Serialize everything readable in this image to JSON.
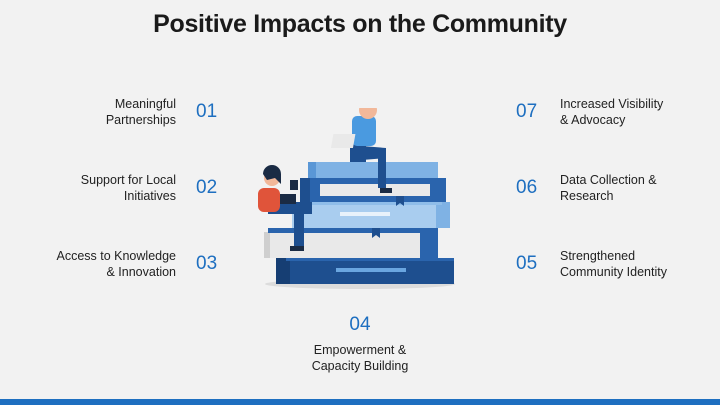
{
  "title": "Positive Impacts on the Community",
  "items": [
    {
      "number": "01",
      "label_line1": "Meaningful",
      "label_line2": "Partnerships"
    },
    {
      "number": "02",
      "label_line1": "Support for Local",
      "label_line2": "Initiatives"
    },
    {
      "number": "03",
      "label_line1": "Access to Knowledge",
      "label_line2": "& Innovation"
    },
    {
      "number": "04",
      "label_line1": "Empowerment &",
      "label_line2": "Capacity Building"
    },
    {
      "number": "05",
      "label_line1": "Strengthened",
      "label_line2": "Community Identity"
    },
    {
      "number": "06",
      "label_line1": "Data Collection &",
      "label_line2": "Research"
    },
    {
      "number": "07",
      "label_line1": "Increased Visibility",
      "label_line2": "& Advocacy"
    }
  ],
  "colors": {
    "accent": "#1e6fc0",
    "background": "#f2f2f2"
  }
}
